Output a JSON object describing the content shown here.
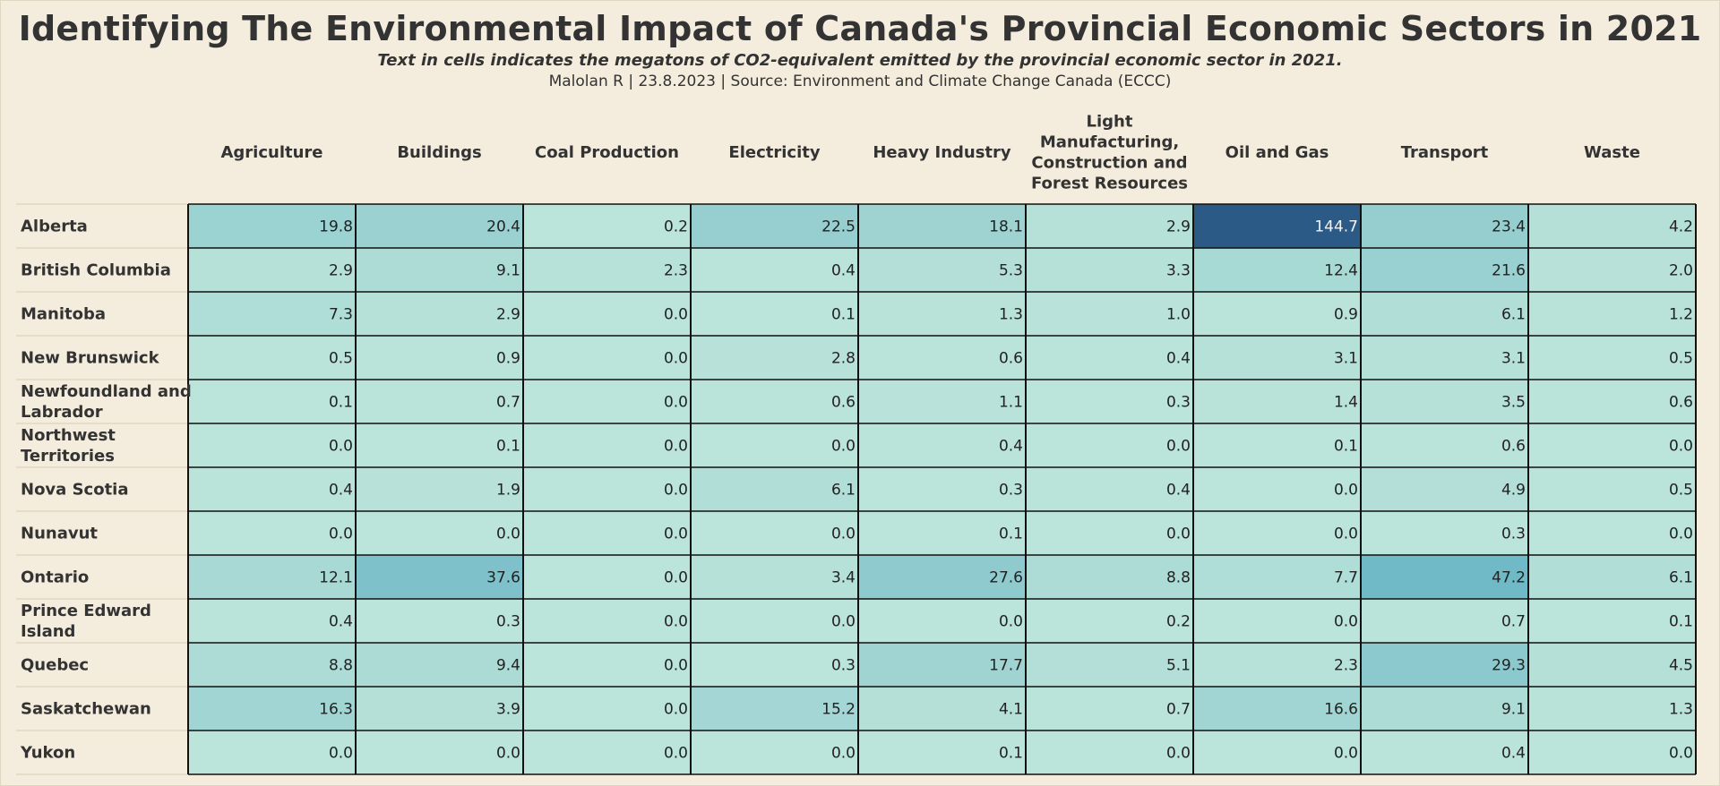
{
  "title": "Identifying The Environmental Impact of Canada's Provincial Economic Sectors in 2021",
  "subtitle": "Text in cells indicates the megatons of CO2-equivalent emitted by the provincial economic sector in 2021.",
  "caption": "Malolan R | 23.8.2023 | Source: Environment and Climate Change Canada (ECCC)",
  "chart_data": {
    "type": "heatmap",
    "title": "Identifying The Environmental Impact of Canada's Provincial Economic Sectors in 2021",
    "columns": [
      "Agriculture",
      "Buildings",
      "Coal Production",
      "Electricity",
      "Heavy Industry",
      "Light Manufacturing, Construction and Forest Resources",
      "Oil and Gas",
      "Transport",
      "Waste"
    ],
    "rows": [
      "Alberta",
      "British Columbia",
      "Manitoba",
      "New Brunswick",
      "Newfoundland and Labrador",
      "Northwest Territories",
      "Nova Scotia",
      "Nunavut",
      "Ontario",
      "Prince Edward Island",
      "Quebec",
      "Saskatchewan",
      "Yukon"
    ],
    "values": [
      [
        19.8,
        20.4,
        0.2,
        22.5,
        18.1,
        2.9,
        144.7,
        23.4,
        4.2
      ],
      [
        2.9,
        9.1,
        2.3,
        0.4,
        5.3,
        3.3,
        12.4,
        21.6,
        2.0
      ],
      [
        7.3,
        2.9,
        0.0,
        0.1,
        1.3,
        1.0,
        0.9,
        6.1,
        1.2
      ],
      [
        0.5,
        0.9,
        0.0,
        2.8,
        0.6,
        0.4,
        3.1,
        3.1,
        0.5
      ],
      [
        0.1,
        0.7,
        0.0,
        0.6,
        1.1,
        0.3,
        1.4,
        3.5,
        0.6
      ],
      [
        0.0,
        0.1,
        0.0,
        0.0,
        0.4,
        0.0,
        0.1,
        0.6,
        0.0
      ],
      [
        0.4,
        1.9,
        0.0,
        6.1,
        0.3,
        0.4,
        0.0,
        4.9,
        0.5
      ],
      [
        0.0,
        0.0,
        0.0,
        0.0,
        0.1,
        0.0,
        0.0,
        0.3,
        0.0
      ],
      [
        12.1,
        37.6,
        0.0,
        3.4,
        27.6,
        8.8,
        7.7,
        47.2,
        6.1
      ],
      [
        0.4,
        0.3,
        0.0,
        0.0,
        0.0,
        0.2,
        0.0,
        0.7,
        0.1
      ],
      [
        8.8,
        9.4,
        0.0,
        0.3,
        17.7,
        5.1,
        2.3,
        29.3,
        4.5
      ],
      [
        16.3,
        3.9,
        0.0,
        15.2,
        4.1,
        0.7,
        16.6,
        9.1,
        1.3
      ],
      [
        0.0,
        0.0,
        0.0,
        0.0,
        0.1,
        0.0,
        0.0,
        0.4,
        0.0
      ]
    ],
    "value_format": "0.0",
    "color_scale": {
      "low": "#bbe4da",
      "mid": "#6fb8c6",
      "high": "#2c5a87",
      "text_dark": "#222222",
      "text_light": "#f2f2f2"
    },
    "colors": {
      "background": "#f4ecdc",
      "grid": "#111111",
      "label_text": "#333333"
    }
  }
}
